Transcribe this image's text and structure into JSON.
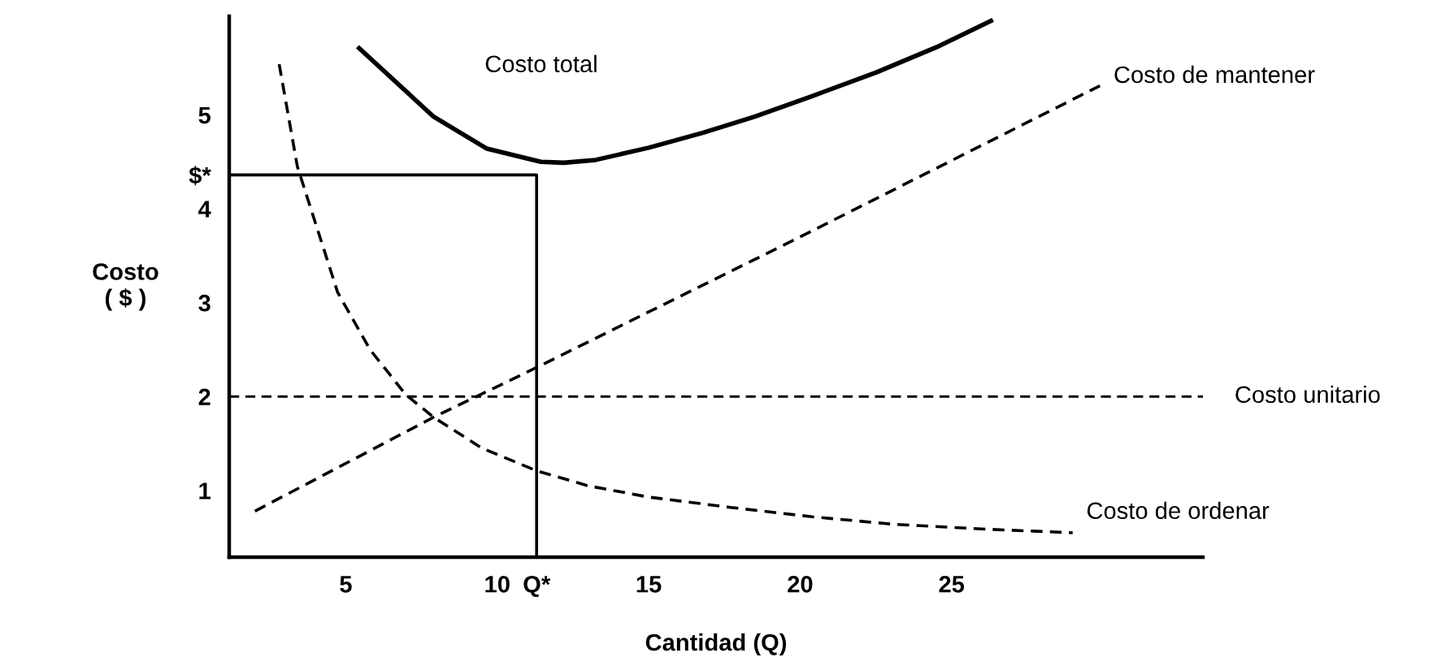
{
  "chart_data": {
    "type": "line",
    "xlabel": "Cantidad (Q)",
    "ylabel": "Costo\n( $ )",
    "xlim": [
      1.15,
      33.3
    ],
    "ylim": [
      0.29,
      6.05
    ],
    "xticks": [
      5,
      10,
      {
        "value": 11.3,
        "label": "Q*"
      },
      15,
      20,
      25
    ],
    "yticks": [
      1,
      2,
      3,
      4,
      {
        "value": 4.36,
        "label": "$*"
      },
      5
    ],
    "grid": false,
    "legend": false,
    "marker": "none",
    "ref_lines": [
      {
        "axis": "y",
        "value": 2,
        "label": "Costo unitario",
        "color": "#000000",
        "line_style": "dashed"
      }
    ],
    "series": [
      {
        "name": "Costo total",
        "color": "#000000",
        "line_style": "solid",
        "x": [
          5.44,
          7.9,
          9.66,
          11.44,
          12.2,
          13.25,
          15.0,
          16.8,
          18.5,
          20.4,
          22.5,
          24.5,
          26.3
        ],
        "values": [
          5.71,
          4.98,
          4.64,
          4.5,
          4.49,
          4.52,
          4.65,
          4.81,
          4.98,
          5.2,
          5.45,
          5.72,
          6.0
        ]
      },
      {
        "name": "Costo de mantener",
        "color": "#000000",
        "line_style": "dashed",
        "x": [
          2.0,
          7.9,
          11.3,
          20.0,
          29.9
        ],
        "values": [
          0.78,
          1.78,
          2.31,
          3.7,
          5.31
        ]
      },
      {
        "name": "Costo de ordenar",
        "color": "#000000",
        "line_style": "dashed",
        "x": [
          2.8,
          3.4,
          4.73,
          5.8,
          6.98,
          7.9,
          9.5,
          11.3,
          13.0,
          15.0,
          17.7,
          20.4,
          23.1,
          26.0,
          29.0
        ],
        "values": [
          5.54,
          4.45,
          3.11,
          2.5,
          2.02,
          1.78,
          1.45,
          1.21,
          1.05,
          0.93,
          0.82,
          0.72,
          0.64,
          0.59,
          0.55
        ]
      },
      {
        "color": "#000000",
        "line_style": "solid",
        "x": [
          1.15,
          11.3,
          11.3
        ],
        "values": [
          4.36,
          4.36,
          0.29
        ]
      }
    ]
  }
}
